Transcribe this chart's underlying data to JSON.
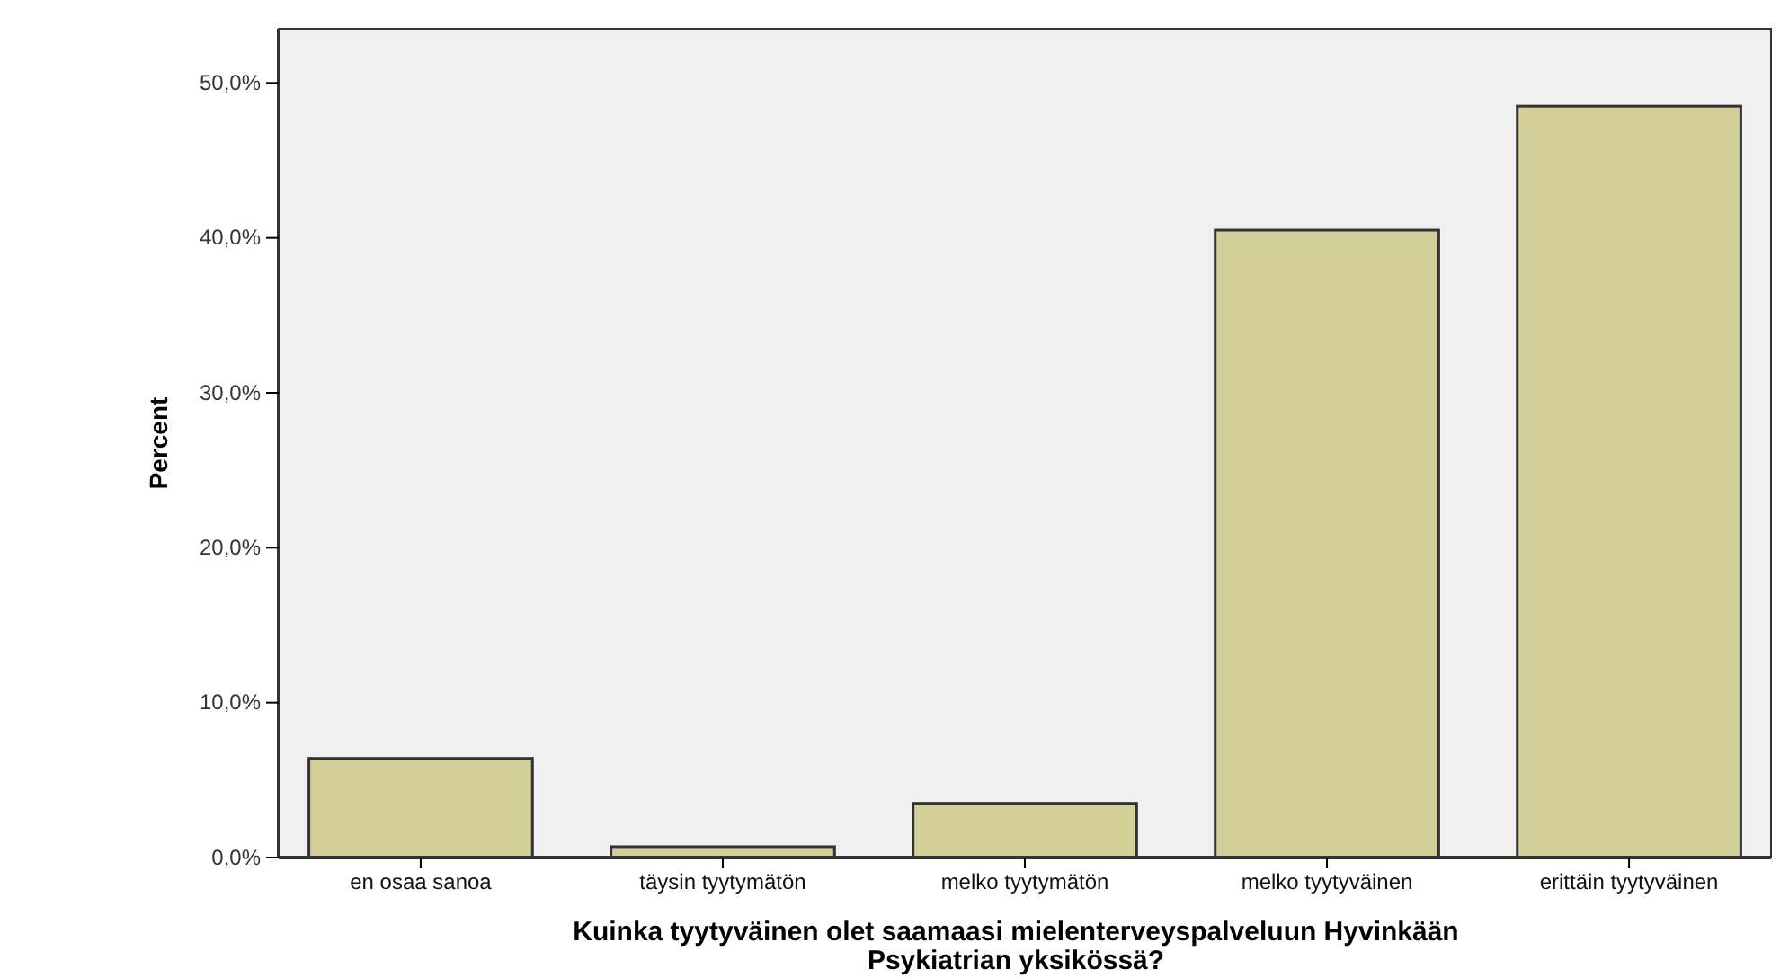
{
  "chart_data": {
    "type": "bar",
    "xlabel": "Kuinka tyytyväinen olet saamaasi mielenterveyspalveluun Hyvinkään Psykiatrian yksikössä?",
    "ylabel": "Percent",
    "categories": [
      "en osaa sanoa",
      "täysin tyytymätön",
      "melko tyytymätön",
      "melko tyytyväinen",
      "erittäin tyytyväinen"
    ],
    "values": [
      6.4,
      0.7,
      3.5,
      40.5,
      48.5
    ],
    "color": "#d3cf98",
    "ylim": [
      0,
      53.5
    ],
    "yticks": [
      {
        "value": 0,
        "label": "0,0%"
      },
      {
        "value": 10,
        "label": "10,0%"
      },
      {
        "value": 20,
        "label": "20,0%"
      },
      {
        "value": 30,
        "label": "30,0%"
      },
      {
        "value": 40,
        "label": "40,0%"
      },
      {
        "value": 50,
        "label": "50,0%"
      }
    ],
    "grid": false
  }
}
